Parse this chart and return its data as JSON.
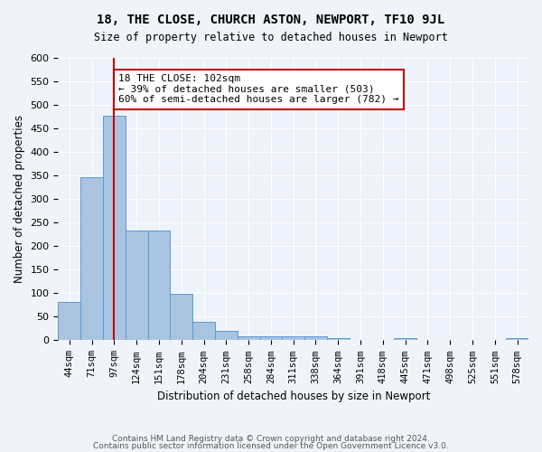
{
  "title": "18, THE CLOSE, CHURCH ASTON, NEWPORT, TF10 9JL",
  "subtitle": "Size of property relative to detached houses in Newport",
  "xlabel": "Distribution of detached houses by size in Newport",
  "ylabel": "Number of detached properties",
  "bar_color": "#a8c4e0",
  "bar_edge_color": "#5b9bd5",
  "background_color": "#eef3fb",
  "grid_color": "#ffffff",
  "categories": [
    "44sqm",
    "71sqm",
    "97sqm",
    "124sqm",
    "151sqm",
    "178sqm",
    "204sqm",
    "231sqm",
    "258sqm",
    "284sqm",
    "311sqm",
    "338sqm",
    "364sqm",
    "391sqm",
    "418sqm",
    "445sqm",
    "471sqm",
    "498sqm",
    "525sqm",
    "551sqm",
    "578sqm"
  ],
  "values": [
    81,
    347,
    477,
    234,
    234,
    98,
    39,
    20,
    9,
    9,
    9,
    9,
    5,
    0,
    0,
    5,
    0,
    0,
    0,
    0,
    5
  ],
  "red_line_index": 2,
  "annotation_text": "18 THE CLOSE: 102sqm\n← 39% of detached houses are smaller (503)\n60% of semi-detached houses are larger (782) →",
  "annotation_box_color": "#ffffff",
  "annotation_box_edge_color": "#cc0000",
  "red_line_color": "#cc0000",
  "ylim": [
    0,
    600
  ],
  "yticks": [
    0,
    50,
    100,
    150,
    200,
    250,
    300,
    350,
    400,
    450,
    500,
    550,
    600
  ],
  "footer_text1": "Contains HM Land Registry data © Crown copyright and database right 2024.",
  "footer_text2": "Contains public sector information licensed under the Open Government Licence v3.0."
}
